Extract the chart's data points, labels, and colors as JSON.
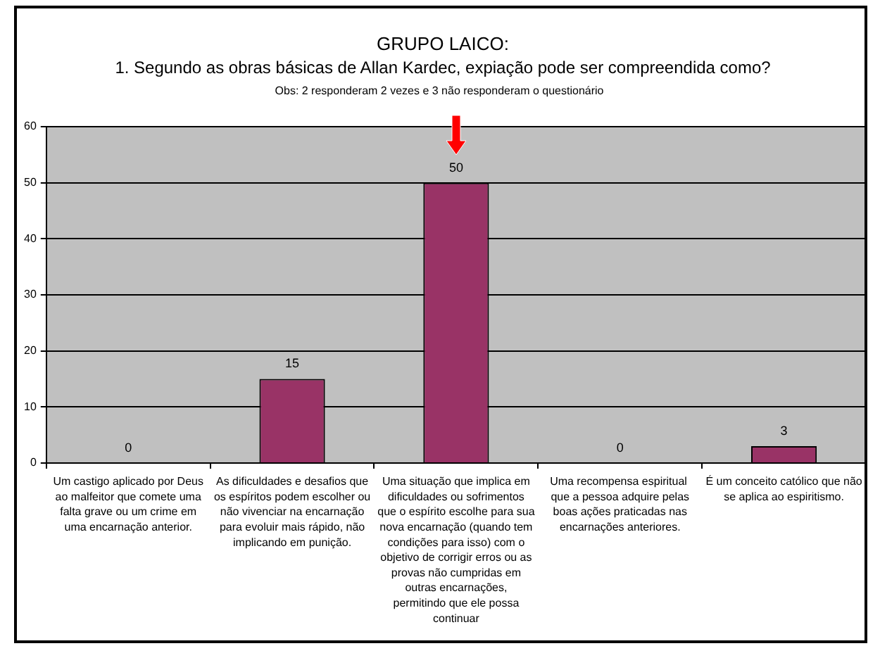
{
  "chart_data": {
    "type": "bar",
    "title": "GRUPO LAICO:",
    "subtitle": "1. Segundo as obras básicas de Allan Kardec, expiação pode ser compreendida como?",
    "annotations": [
      "Obs: 2 responderam 2 vezes e 3 não responderam o questionário"
    ],
    "categories": [
      "Um castigo aplicado por Deus ao malfeitor que comete uma falta grave ou um crime em uma encarnação anterior.",
      "As dificuldades e desafios que os espíritos podem escolher ou não vivenciar na encarnação para evoluir mais rápido, não implicando em punição.",
      "Uma situação que implica em dificuldades ou sofrimentos que o espírito escolhe para sua nova encarnação (quando tem condições para isso) com o objetivo de corrigir erros ou as provas não cumpridas em outras encarnações, permitindo que ele possa continuar",
      "Uma recompensa espiritual  que a pessoa adquire pelas boas ações praticadas nas encarnações anteriores.",
      "É um conceito católico que não se aplica ao espiritismo."
    ],
    "values": [
      0,
      15,
      50,
      0,
      3
    ],
    "color": "#993366",
    "ylim": [
      0,
      60
    ],
    "yticks": [
      0,
      10,
      20,
      30,
      40,
      50,
      60
    ],
    "grid": "y",
    "data_labels": true
  }
}
